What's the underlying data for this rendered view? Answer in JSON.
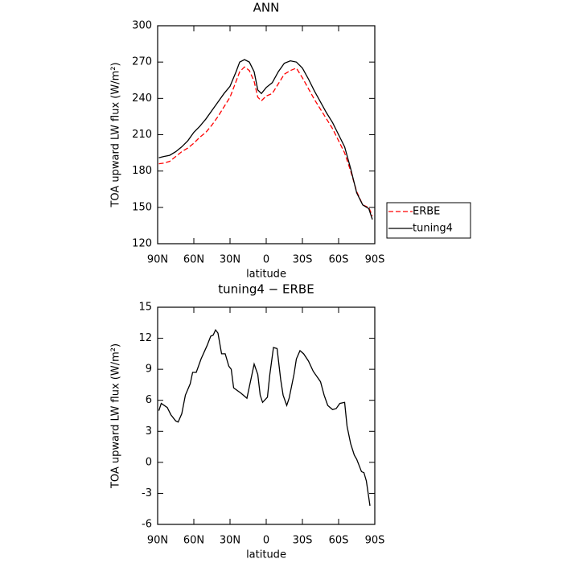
{
  "chart_data": [
    {
      "type": "line",
      "title": "ANN",
      "xlabel": "latitude",
      "ylabel": "TOA upward LW flux (W/m²)",
      "x": [
        89,
        85,
        80,
        75,
        70,
        65,
        60,
        55,
        50,
        45,
        40,
        35,
        30,
        25,
        22,
        18,
        14,
        10,
        7,
        4,
        0,
        -5,
        -10,
        -15,
        -20,
        -25,
        -30,
        -35,
        -40,
        -45,
        -50,
        -55,
        -60,
        -65,
        -70,
        -75,
        -80,
        -85,
        -88
      ],
      "series": [
        {
          "name": "ERBE",
          "color": "#ff0000",
          "linestyle": "dashed",
          "values": [
            186,
            186.5,
            188,
            192,
            196,
            199,
            203,
            208,
            212,
            218,
            225,
            233,
            241,
            254,
            262,
            266,
            263,
            254,
            241,
            238,
            242,
            244,
            252,
            260,
            263,
            265,
            257,
            248,
            239,
            231,
            223,
            215,
            205,
            195,
            180,
            163,
            152,
            150,
            143
          ]
        },
        {
          "name": "tuning4",
          "color": "#000000",
          "linestyle": "solid",
          "values": [
            191,
            192,
            193,
            196,
            200,
            205,
            212,
            217,
            223,
            230,
            237,
            244,
            250,
            262,
            270,
            272,
            270,
            262,
            247,
            244,
            249,
            253,
            262,
            269,
            271,
            270,
            265,
            256,
            246,
            237,
            228,
            220,
            210,
            200,
            182,
            162,
            152,
            149,
            140
          ]
        }
      ],
      "xlim": [
        90,
        -90
      ],
      "xticks": [
        {
          "value": 90,
          "label": "90N"
        },
        {
          "value": 60,
          "label": "60N"
        },
        {
          "value": 30,
          "label": "30N"
        },
        0,
        {
          "value": -30,
          "label": "30S"
        },
        {
          "value": -60,
          "label": "60S"
        },
        {
          "value": -90,
          "label": "90S"
        }
      ],
      "ylim": [
        120,
        300
      ],
      "yticks": [
        120,
        150,
        180,
        210,
        240,
        270,
        300
      ],
      "legend": "right"
    },
    {
      "type": "line",
      "title": "tuning4 − ERBE",
      "xlabel": "latitude",
      "ylabel": "TOA upward LW flux (W/m²)",
      "x": [
        89,
        87,
        82,
        79,
        75,
        73,
        70,
        67,
        63,
        61,
        58,
        54,
        49,
        46,
        44,
        42,
        40,
        37,
        34,
        31,
        29,
        27,
        21,
        16,
        14,
        10,
        7,
        5,
        3,
        -1,
        -3,
        -6,
        -9,
        -12,
        -14,
        -17,
        -19,
        -23,
        -25,
        -28,
        -31,
        -35,
        -39,
        -45,
        -48,
        -51,
        -55,
        -58,
        -61,
        -65,
        -67,
        -70,
        -73,
        -75,
        -79,
        -81,
        -83,
        -86
      ],
      "series": [
        {
          "color": "#000000",
          "linestyle": "solid",
          "values": [
            5.0,
            5.7,
            5.3,
            4.6,
            4.0,
            3.9,
            4.7,
            6.5,
            7.6,
            8.7,
            8.7,
            10.0,
            11.3,
            12.2,
            12.3,
            12.8,
            12.5,
            10.5,
            10.5,
            9.3,
            9.0,
            7.2,
            6.7,
            6.2,
            7.3,
            9.5,
            8.5,
            6.5,
            5.8,
            6.3,
            8.5,
            11.1,
            11.0,
            8.0,
            6.5,
            5.5,
            6.2,
            8.5,
            10.0,
            10.8,
            10.5,
            9.8,
            8.8,
            7.8,
            6.5,
            5.5,
            5.1,
            5.2,
            5.7,
            5.8,
            3.5,
            1.8,
            0.7,
            0.3,
            -0.9,
            -1.0,
            -1.8,
            -4.2
          ]
        }
      ],
      "xlim": [
        90,
        -90
      ],
      "xticks": [
        {
          "value": 90,
          "label": "90N"
        },
        {
          "value": 60,
          "label": "60N"
        },
        {
          "value": 30,
          "label": "30N"
        },
        0,
        {
          "value": -30,
          "label": "30S"
        },
        {
          "value": -60,
          "label": "60S"
        },
        {
          "value": -90,
          "label": "90S"
        }
      ],
      "ylim": [
        -6,
        15
      ],
      "yticks": [
        -6,
        -3,
        0,
        3,
        6,
        9,
        12,
        15
      ]
    }
  ]
}
